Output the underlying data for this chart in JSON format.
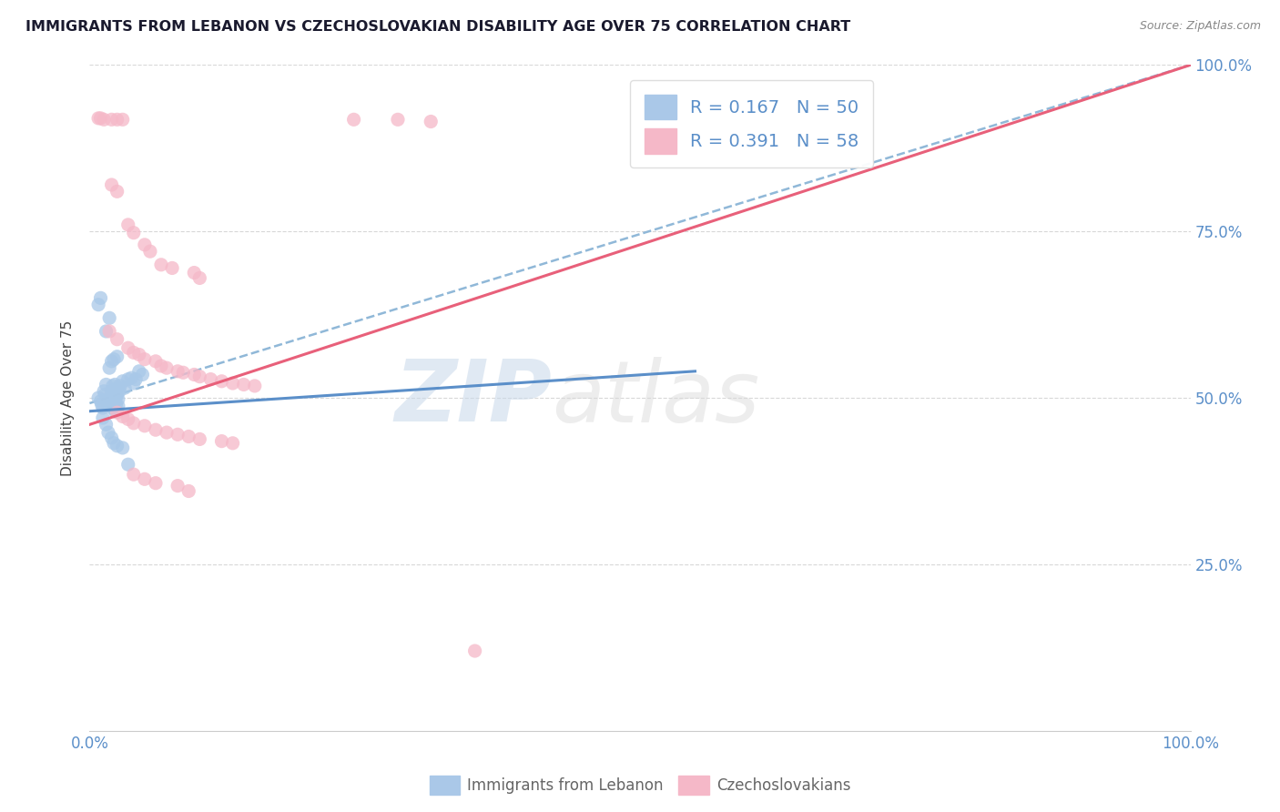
{
  "title": "IMMIGRANTS FROM LEBANON VS CZECHOSLOVAKIAN DISABILITY AGE OVER 75 CORRELATION CHART",
  "source": "Source: ZipAtlas.com",
  "ylabel": "Disability Age Over 75",
  "xlim": [
    0,
    1.0
  ],
  "ylim": [
    0,
    1.0
  ],
  "blue_color": "#a8c8e8",
  "pink_color": "#f5b8c8",
  "trendline_blue_color": "#5b8fc9",
  "trendline_pink_color": "#e8607a",
  "dashed_color": "#90b8d8",
  "grid_color": "#d8d8d8",
  "right_axis_color": "#5b8fc9",
  "lebanon_points": [
    [
      0.008,
      0.5
    ],
    [
      0.01,
      0.495
    ],
    [
      0.011,
      0.49
    ],
    [
      0.012,
      0.485
    ],
    [
      0.013,
      0.51
    ],
    [
      0.014,
      0.505
    ],
    [
      0.015,
      0.52
    ],
    [
      0.016,
      0.498
    ],
    [
      0.017,
      0.488
    ],
    [
      0.018,
      0.495
    ],
    [
      0.02,
      0.502
    ],
    [
      0.02,
      0.51
    ],
    [
      0.021,
      0.485
    ],
    [
      0.021,
      0.518
    ],
    [
      0.022,
      0.495
    ],
    [
      0.022,
      0.508
    ],
    [
      0.023,
      0.48
    ],
    [
      0.023,
      0.52
    ],
    [
      0.024,
      0.5
    ],
    [
      0.024,
      0.49
    ],
    [
      0.025,
      0.505
    ],
    [
      0.025,
      0.515
    ],
    [
      0.026,
      0.498
    ],
    [
      0.026,
      0.488
    ],
    [
      0.027,
      0.51
    ],
    [
      0.028,
      0.518
    ],
    [
      0.03,
      0.525
    ],
    [
      0.032,
      0.515
    ],
    [
      0.035,
      0.528
    ],
    [
      0.038,
      0.53
    ],
    [
      0.04,
      0.522
    ],
    [
      0.042,
      0.528
    ],
    [
      0.045,
      0.54
    ],
    [
      0.048,
      0.535
    ],
    [
      0.018,
      0.545
    ],
    [
      0.02,
      0.555
    ],
    [
      0.022,
      0.558
    ],
    [
      0.025,
      0.562
    ],
    [
      0.015,
      0.6
    ],
    [
      0.018,
      0.62
    ],
    [
      0.008,
      0.64
    ],
    [
      0.01,
      0.65
    ],
    [
      0.012,
      0.47
    ],
    [
      0.015,
      0.46
    ],
    [
      0.017,
      0.448
    ],
    [
      0.02,
      0.44
    ],
    [
      0.022,
      0.432
    ],
    [
      0.025,
      0.428
    ],
    [
      0.03,
      0.425
    ],
    [
      0.035,
      0.4
    ]
  ],
  "czech_points": [
    [
      0.008,
      0.92
    ],
    [
      0.01,
      0.92
    ],
    [
      0.013,
      0.918
    ],
    [
      0.02,
      0.918
    ],
    [
      0.025,
      0.918
    ],
    [
      0.03,
      0.918
    ],
    [
      0.24,
      0.918
    ],
    [
      0.28,
      0.918
    ],
    [
      0.31,
      0.915
    ],
    [
      0.02,
      0.82
    ],
    [
      0.025,
      0.81
    ],
    [
      0.035,
      0.76
    ],
    [
      0.04,
      0.748
    ],
    [
      0.05,
      0.73
    ],
    [
      0.055,
      0.72
    ],
    [
      0.065,
      0.7
    ],
    [
      0.075,
      0.695
    ],
    [
      0.095,
      0.688
    ],
    [
      0.1,
      0.68
    ],
    [
      0.018,
      0.6
    ],
    [
      0.025,
      0.588
    ],
    [
      0.035,
      0.575
    ],
    [
      0.04,
      0.568
    ],
    [
      0.045,
      0.565
    ],
    [
      0.05,
      0.558
    ],
    [
      0.06,
      0.555
    ],
    [
      0.065,
      0.548
    ],
    [
      0.07,
      0.545
    ],
    [
      0.08,
      0.54
    ],
    [
      0.085,
      0.538
    ],
    [
      0.095,
      0.535
    ],
    [
      0.1,
      0.532
    ],
    [
      0.11,
      0.528
    ],
    [
      0.12,
      0.525
    ],
    [
      0.13,
      0.522
    ],
    [
      0.14,
      0.52
    ],
    [
      0.15,
      0.518
    ],
    [
      0.025,
      0.478
    ],
    [
      0.03,
      0.472
    ],
    [
      0.035,
      0.468
    ],
    [
      0.04,
      0.462
    ],
    [
      0.05,
      0.458
    ],
    [
      0.06,
      0.452
    ],
    [
      0.07,
      0.448
    ],
    [
      0.08,
      0.445
    ],
    [
      0.09,
      0.442
    ],
    [
      0.1,
      0.438
    ],
    [
      0.12,
      0.435
    ],
    [
      0.13,
      0.432
    ],
    [
      0.04,
      0.385
    ],
    [
      0.05,
      0.378
    ],
    [
      0.06,
      0.372
    ],
    [
      0.08,
      0.368
    ],
    [
      0.09,
      0.36
    ],
    [
      0.35,
      0.12
    ]
  ],
  "blue_trend_x": [
    0.0,
    0.55
  ],
  "blue_trend_y": [
    0.48,
    0.54
  ],
  "pink_trend_x": [
    0.0,
    1.0
  ],
  "pink_trend_y": [
    0.46,
    1.0
  ],
  "dashed_trend_x": [
    0.0,
    1.0
  ],
  "dashed_trend_y": [
    0.492,
    1.0
  ]
}
